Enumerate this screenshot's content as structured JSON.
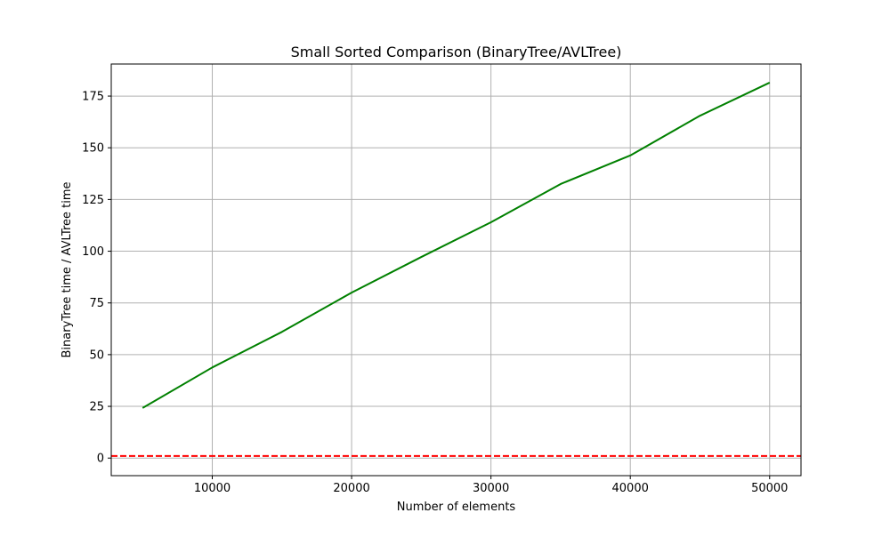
{
  "chart_data": {
    "type": "line",
    "title": "Small Sorted Comparison (BinaryTree/AVLTree)",
    "xlabel": "Number of elements",
    "ylabel": "BinaryTree time / AVLTree time",
    "x": [
      5000,
      10000,
      15000,
      20000,
      25000,
      30000,
      35000,
      40000,
      45000,
      50000
    ],
    "series": [
      {
        "values": [
          24.2,
          43.8,
          61.0,
          80.0,
          97.2,
          114.0,
          132.5,
          146.3,
          165.5,
          181.5
        ],
        "color": "#008000",
        "style": "solid"
      }
    ],
    "reference_line": {
      "y": 1,
      "color": "#ff0000",
      "style": "dashed"
    },
    "xlim": [
      2750,
      52250
    ],
    "ylim": [
      -8.5,
      190.5
    ],
    "x_ticks": [
      10000,
      20000,
      30000,
      40000,
      50000
    ],
    "y_ticks": [
      0,
      25,
      50,
      75,
      100,
      125,
      150,
      175
    ],
    "x_tick_labels": [
      "10000",
      "20000",
      "30000",
      "40000",
      "50000"
    ],
    "y_tick_labels": [
      "0",
      "25",
      "50",
      "75",
      "100",
      "125",
      "150",
      "175"
    ],
    "grid": true,
    "legend": "none"
  }
}
